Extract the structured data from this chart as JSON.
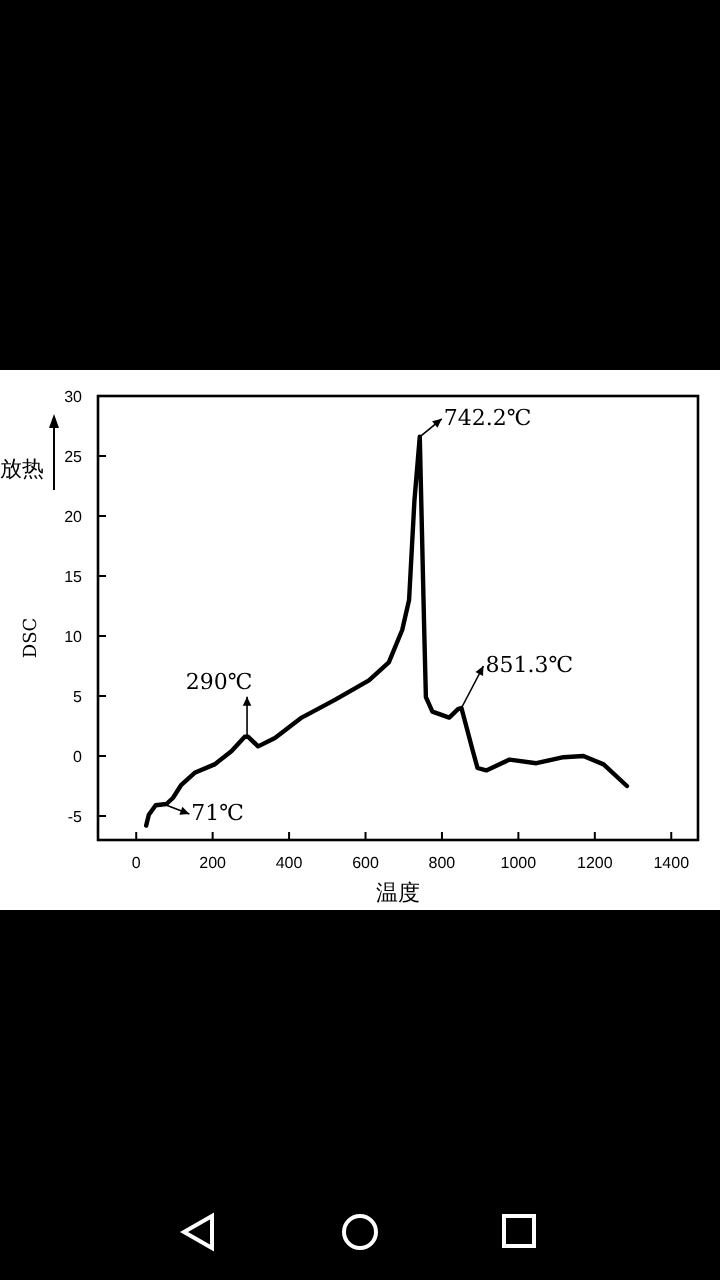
{
  "chart_data": {
    "type": "line",
    "xlabel": "温度",
    "ylabel": "DSC",
    "annotations": [
      "放热",
      {
        "text": "71℃",
        "x": 71,
        "y": -4.0
      },
      {
        "text": "290℃",
        "x": 290,
        "y": 1.6
      },
      {
        "text": "742.2℃",
        "x": 742,
        "y": 26.6
      },
      {
        "text": "851.3℃",
        "x": 851,
        "y": 4.0
      }
    ],
    "x": [
      26,
      33,
      51,
      79,
      96,
      118,
      153,
      205,
      249,
      284,
      293,
      319,
      363,
      433,
      521,
      609,
      661,
      696,
      714,
      728,
      742,
      746,
      754,
      758,
      775,
      819,
      842,
      851,
      881,
      893,
      916,
      977,
      1047,
      1118,
      1170,
      1223,
      1284
    ],
    "series": [
      {
        "color": "#000000",
        "values": [
          -5.8,
          -4.9,
          -4.1,
          -4.0,
          -3.5,
          -2.4,
          -1.4,
          -0.7,
          0.4,
          1.6,
          1.6,
          0.8,
          1.5,
          3.2,
          4.7,
          6.3,
          7.8,
          10.5,
          13,
          21.3,
          26.6,
          21,
          10,
          4.9,
          3.7,
          3.2,
          3.9,
          4.0,
          0.4,
          -1.0,
          -1.2,
          -0.3,
          -0.6,
          -0.1,
          0.0,
          -0.7,
          -2.5
        ]
      }
    ],
    "xlim": [
      -100,
      1470
    ],
    "ylim": [
      -7,
      30
    ],
    "xticks": [
      0,
      200,
      400,
      600,
      800,
      1000,
      1200,
      1400
    ],
    "yticks": [
      -5,
      0,
      5,
      10,
      15,
      20,
      25,
      30
    ]
  }
}
